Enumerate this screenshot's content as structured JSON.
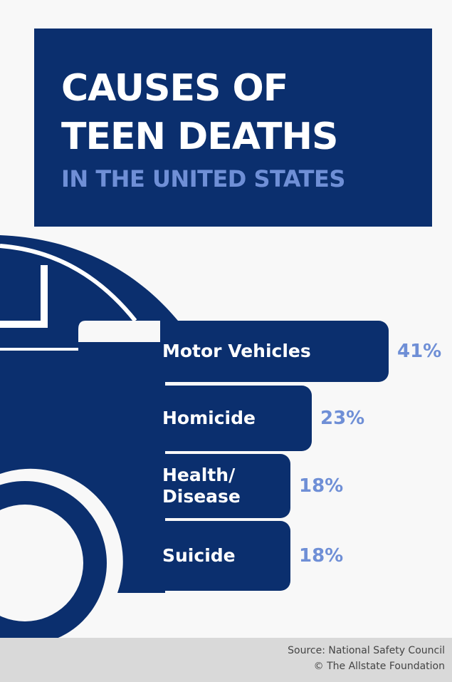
{
  "chart_data": {
    "type": "bar",
    "orientation": "horizontal",
    "title": "CAUSES OF\nTEEN DEATHS",
    "subtitle": "IN THE UNITED STATES",
    "categories": [
      "Motor Vehicles",
      "Homicide",
      "Health/\nDisease",
      "Suicide"
    ],
    "values": [
      41,
      23,
      18,
      18
    ],
    "value_labels": [
      "41%",
      "23%",
      "18%",
      "18%"
    ],
    "color": "#0b2f6e",
    "label_color": "#6f8fd6"
  },
  "footer": {
    "lines": [
      "Source: National Safety Council",
      "© The Allstate Foundation"
    ]
  }
}
